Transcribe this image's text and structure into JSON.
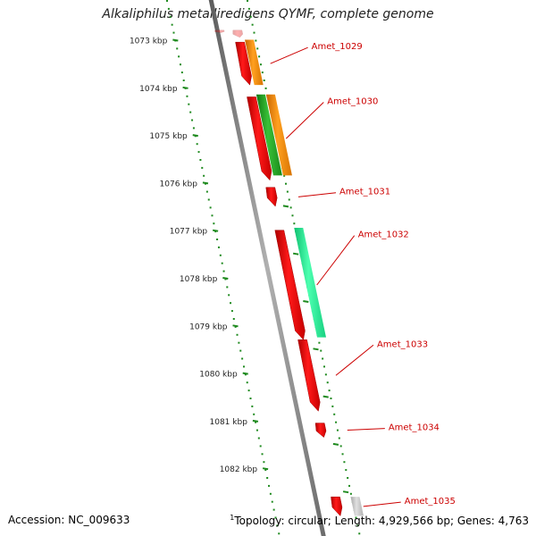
{
  "title": "Alkaliphilus metalliredigens QYMF, complete genome",
  "footer": {
    "accession": "Accession: NC_009633",
    "topology_marker": "1",
    "topology": "Topology: circular; Length: 4,929,566 bp; Genes: 4,763"
  },
  "colors": {
    "forward_gene": "#ff0000",
    "orange_gene": "#ff8c00",
    "green_gene": "#22aa22",
    "teal_gene": "#22ee99",
    "gray_gene": "#c8c8c8",
    "backbone": "#8a8a8a",
    "ticks": "#1f8a1f",
    "label": "#cc0000"
  },
  "scale": {
    "ticks": [
      "1073 kbp",
      "1074 kbp",
      "1075 kbp",
      "1076 kbp",
      "1077 kbp",
      "1078 kbp",
      "1079 kbp",
      "1080 kbp",
      "1081 kbp",
      "1082 kbp"
    ]
  },
  "genes": [
    {
      "label": "",
      "start_kbp": 1072.8,
      "end_kbp": 1072.85,
      "track": 1,
      "color": "red",
      "faded": true
    },
    {
      "label": "",
      "start_kbp": 1072.8,
      "end_kbp": 1072.95,
      "track": 2,
      "color": "red",
      "faded": true
    },
    {
      "label": "Amet_1029",
      "start_kbp": 1073.05,
      "end_kbp": 1073.95,
      "track": 2,
      "color": "red"
    },
    {
      "label": "",
      "start_kbp": 1073.0,
      "end_kbp": 1073.95,
      "track": 3,
      "color": "orange"
    },
    {
      "label": "Amet_1030",
      "start_kbp": 1074.2,
      "end_kbp": 1075.95,
      "track": 2,
      "color": "red"
    },
    {
      "label": "",
      "start_kbp": 1074.15,
      "end_kbp": 1075.85,
      "track": 3,
      "color": "green"
    },
    {
      "label": "",
      "start_kbp": 1074.15,
      "end_kbp": 1075.85,
      "track": 4,
      "color": "orange"
    },
    {
      "label": "Amet_1031",
      "start_kbp": 1076.1,
      "end_kbp": 1076.5,
      "track": 2,
      "color": "red"
    },
    {
      "label": "Amet_1032",
      "start_kbp": 1077.0,
      "end_kbp": 1079.3,
      "track": 2,
      "color": "red"
    },
    {
      "label": "",
      "start_kbp": 1076.95,
      "end_kbp": 1079.25,
      "track": 4,
      "color": "teal"
    },
    {
      "label": "Amet_1033",
      "start_kbp": 1079.3,
      "end_kbp": 1080.8,
      "track": 2,
      "color": "red"
    },
    {
      "label": "Amet_1034",
      "start_kbp": 1081.05,
      "end_kbp": 1081.35,
      "track": 2,
      "color": "red"
    },
    {
      "label": "Amet_1035",
      "start_kbp": 1082.6,
      "end_kbp": 1083.0,
      "track": 2,
      "color": "red"
    },
    {
      "label": "",
      "start_kbp": 1082.6,
      "end_kbp": 1083.0,
      "track": 4,
      "color": "gray"
    }
  ]
}
